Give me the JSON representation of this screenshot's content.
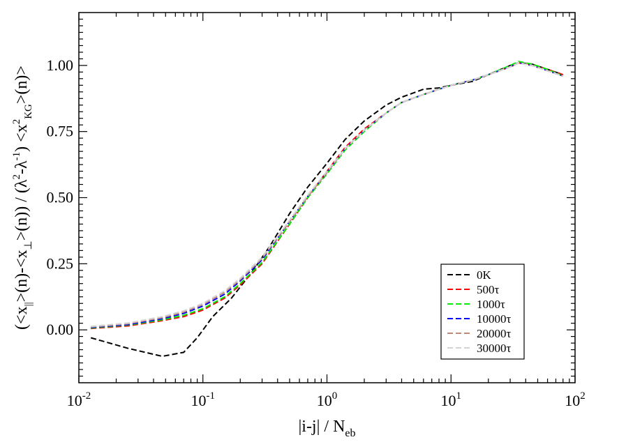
{
  "chart_data": {
    "type": "line",
    "xscale": "log",
    "xlim": [
      0.01,
      100
    ],
    "ylim": [
      -0.2,
      1.2
    ],
    "grid": false,
    "legend_position": "bottom-right",
    "xlabel": {
      "main": "|i-j| / N",
      "sub": "eb"
    },
    "ylabel": {
      "parts": [
        {
          "t": "(<x"
        },
        {
          "t": "||",
          "sub": true
        },
        {
          "t": ">(n)-<x"
        },
        {
          "t": "⊥",
          "sub": true
        },
        {
          "t": ">(n)) / (λ"
        },
        {
          "t": "2",
          "sup": true
        },
        {
          "t": "-λ"
        },
        {
          "t": "-1",
          "sup": true
        },
        {
          "t": ") <x"
        },
        {
          "t": "2",
          "sup": true
        },
        {
          "t": "KG",
          "sub": true
        },
        {
          "t": ">(n)>"
        }
      ]
    },
    "x_ticks": [
      {
        "value": 0.01,
        "base": "10",
        "exp": "-2"
      },
      {
        "value": 0.1,
        "base": "10",
        "exp": "-1"
      },
      {
        "value": 1,
        "base": "10",
        "exp": "0"
      },
      {
        "value": 10,
        "base": "10",
        "exp": "1"
      },
      {
        "value": 100,
        "base": "10",
        "exp": "2"
      }
    ],
    "y_ticks": [
      {
        "value": 0.0,
        "label": "0.00"
      },
      {
        "value": 0.25,
        "label": "0.25"
      },
      {
        "value": 0.5,
        "label": "0.50"
      },
      {
        "value": 0.75,
        "label": "0.75"
      },
      {
        "value": 1.0,
        "label": "1.00"
      }
    ],
    "series": [
      {
        "name": "0K",
        "color": "#000000",
        "x": [
          0.0125,
          0.025,
          0.047,
          0.07,
          0.09,
          0.12,
          0.17,
          0.25,
          0.35,
          0.5,
          0.7,
          1.0,
          1.4,
          2.0,
          3.0,
          4.0,
          6.0,
          8.0,
          10.0,
          15.0,
          20.0,
          30.0,
          35.0,
          45.0,
          60.0,
          80.0
        ],
        "y": [
          -0.03,
          -0.07,
          -0.1,
          -0.085,
          -0.03,
          0.05,
          0.12,
          0.22,
          0.32,
          0.44,
          0.54,
          0.63,
          0.72,
          0.79,
          0.85,
          0.88,
          0.91,
          0.915,
          0.925,
          0.94,
          0.965,
          1.0,
          1.01,
          1.005,
          0.985,
          0.965
        ]
      },
      {
        "name": "500τ",
        "color": "#ff0000",
        "x": [
          0.0125,
          0.025,
          0.047,
          0.07,
          0.1,
          0.15,
          0.2,
          0.3,
          0.5,
          0.7,
          1.0,
          1.4,
          2.0,
          3.0,
          4.0,
          6.0,
          8.0,
          10.0,
          15.0,
          20.0,
          30.0,
          35.0,
          45.0,
          60.0,
          80.0
        ],
        "y": [
          0.005,
          0.015,
          0.035,
          0.05,
          0.075,
          0.12,
          0.17,
          0.25,
          0.4,
          0.5,
          0.6,
          0.69,
          0.76,
          0.82,
          0.86,
          0.89,
          0.91,
          0.925,
          0.945,
          0.965,
          0.995,
          1.01,
          1.005,
          0.985,
          0.965
        ]
      },
      {
        "name": "1000τ",
        "color": "#00ee00",
        "x": [
          0.0125,
          0.025,
          0.047,
          0.07,
          0.1,
          0.15,
          0.2,
          0.3,
          0.5,
          0.7,
          1.0,
          1.4,
          2.0,
          3.0,
          4.0,
          6.0,
          8.0,
          10.0,
          15.0,
          20.0,
          30.0,
          35.0,
          45.0,
          60.0,
          80.0
        ],
        "y": [
          0.007,
          0.018,
          0.038,
          0.055,
          0.08,
          0.125,
          0.175,
          0.255,
          0.4,
          0.5,
          0.59,
          0.68,
          0.75,
          0.82,
          0.86,
          0.89,
          0.91,
          0.925,
          0.945,
          0.965,
          1.0,
          1.015,
          1.005,
          0.985,
          0.96
        ]
      },
      {
        "name": "10000τ",
        "color": "#0000ff",
        "x": [
          0.0125,
          0.025,
          0.047,
          0.07,
          0.1,
          0.15,
          0.2,
          0.3,
          0.5,
          0.7,
          1.0,
          1.4,
          2.0,
          3.0,
          4.0,
          6.0,
          8.0,
          10.0,
          15.0,
          20.0,
          30.0,
          35.0,
          45.0,
          60.0,
          80.0
        ],
        "y": [
          0.009,
          0.02,
          0.042,
          0.062,
          0.09,
          0.135,
          0.185,
          0.265,
          0.41,
          0.505,
          0.595,
          0.685,
          0.755,
          0.82,
          0.86,
          0.89,
          0.91,
          0.925,
          0.945,
          0.965,
          0.995,
          1.01,
          1.0,
          0.98,
          0.96
        ]
      },
      {
        "name": "20000τ",
        "color": "#c08878",
        "x": [
          0.0125,
          0.025,
          0.047,
          0.07,
          0.1,
          0.15,
          0.2,
          0.3,
          0.5,
          0.7,
          1.0,
          1.4,
          2.0,
          3.0,
          4.0,
          6.0,
          8.0,
          10.0,
          15.0,
          20.0,
          30.0,
          35.0,
          45.0,
          60.0,
          80.0
        ],
        "y": [
          0.011,
          0.023,
          0.046,
          0.067,
          0.096,
          0.142,
          0.19,
          0.27,
          0.41,
          0.505,
          0.595,
          0.685,
          0.755,
          0.82,
          0.86,
          0.89,
          0.91,
          0.925,
          0.945,
          0.965,
          0.995,
          1.01,
          1.0,
          0.98,
          0.96
        ]
      },
      {
        "name": "30000τ",
        "color": "#d3d3d3",
        "x": [
          0.0125,
          0.025,
          0.047,
          0.07,
          0.1,
          0.15,
          0.2,
          0.3,
          0.5,
          0.7,
          1.0,
          1.4,
          2.0,
          3.0,
          4.0,
          6.0,
          8.0,
          10.0,
          15.0,
          20.0,
          30.0,
          35.0,
          45.0,
          60.0,
          80.0
        ],
        "y": [
          0.013,
          0.026,
          0.05,
          0.072,
          0.1,
          0.148,
          0.195,
          0.275,
          0.415,
          0.51,
          0.6,
          0.685,
          0.755,
          0.82,
          0.86,
          0.89,
          0.91,
          0.925,
          0.945,
          0.965,
          0.995,
          1.01,
          1.0,
          0.98,
          0.96
        ]
      }
    ]
  }
}
